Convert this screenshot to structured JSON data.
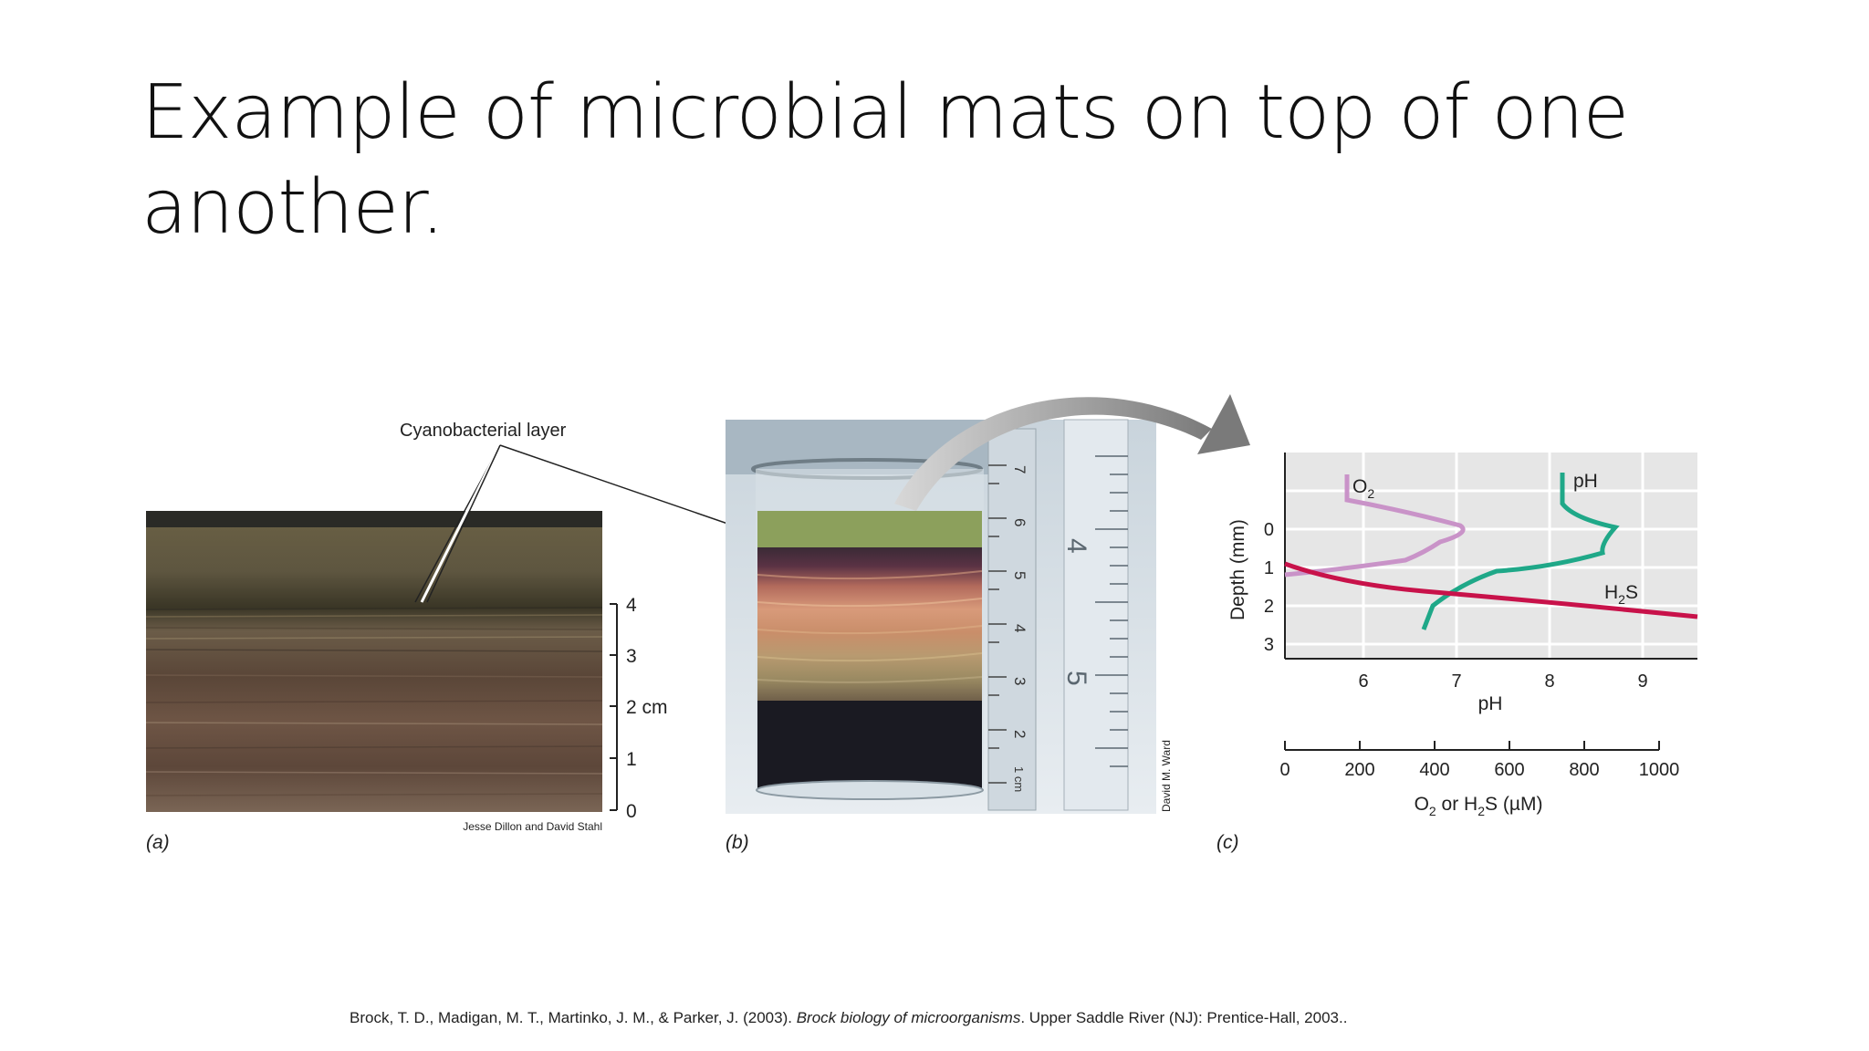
{
  "slide": {
    "title_line1": "Example of microbial mats on top of one",
    "title_line2": "another."
  },
  "figure": {
    "panel_a": {
      "label": "(a)",
      "callout": "Cyanobacterial layer",
      "credit": "Jesse Dillon and David Stahl",
      "scale_ticks": [
        "4",
        "3",
        "2 cm",
        "1",
        "0"
      ]
    },
    "panel_b": {
      "label": "(b)",
      "credit": "David M. Ward",
      "ruler_numbers": [
        "7",
        "6",
        "5",
        "4",
        "3",
        "2",
        "1 cm"
      ],
      "ruler_inch_numbers": [
        "4",
        "5"
      ]
    },
    "panel_c": {
      "label": "(c)",
      "y_axis_label": "Depth (mm)",
      "x_axis_label": "pH",
      "secondary_axis_label_parts": {
        "o": "O",
        "sub1": "2",
        "mid": " or H",
        "sub2": "2",
        "end": "S (µM)"
      },
      "curve_label_o2": {
        "base": "O",
        "sub": "2"
      },
      "curve_label_ph": "pH",
      "curve_label_h2s": {
        "pre": "H",
        "sub": "2",
        "post": "S"
      },
      "depth_ticks": [
        "0",
        "1",
        "2",
        "3"
      ],
      "ph_ticks": [
        "6",
        "7",
        "8",
        "9"
      ],
      "conc_ticks": [
        "0",
        "200",
        "400",
        "600",
        "800",
        "1000"
      ]
    },
    "colors": {
      "o2": "#c993c8",
      "ph": "#1fa888",
      "h2s": "#c8124a",
      "plot_bg": "#e6e6e6",
      "arrow": "#888888"
    }
  },
  "citation": {
    "authors": "Brock, T. D., Madigan, M. T., Martinko, J. M., & Parker, J. (2003). ",
    "book": "Brock biology of microorganisms",
    "rest": ". Upper Saddle River (NJ): Prentice-Hall, 2003.."
  }
}
